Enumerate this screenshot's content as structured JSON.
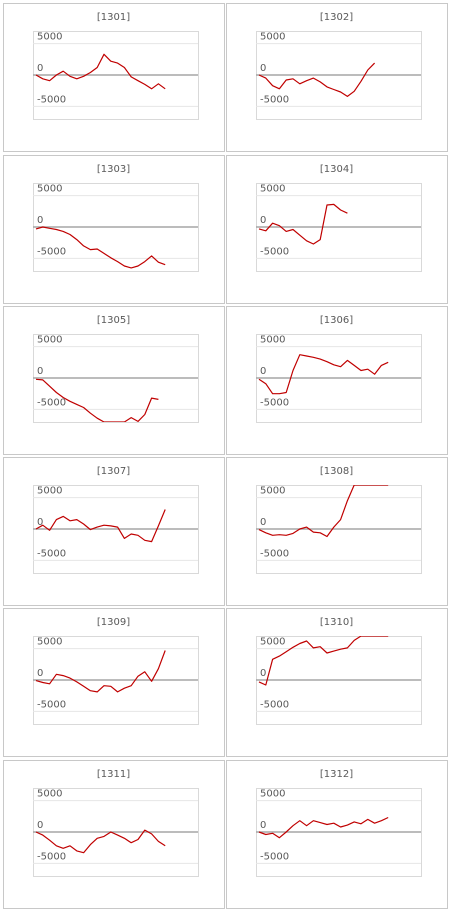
{
  "chart_data": [
    {
      "type": "line",
      "title": "[1301]",
      "color": "#c00000",
      "grid": true,
      "ylim": [
        -7000,
        7000
      ],
      "yticks": [
        -5000,
        0,
        5000
      ],
      "values": [
        0,
        -600,
        -900,
        0,
        600,
        -200,
        -600,
        -200,
        400,
        1200,
        3300,
        2200,
        1900,
        1200,
        -300,
        -900,
        -1500,
        -2200,
        -1400,
        -2200
      ]
    },
    {
      "type": "line",
      "title": "[1302]",
      "color": "#c00000",
      "grid": true,
      "ylim": [
        -7000,
        7000
      ],
      "yticks": [
        -5000,
        0,
        5000
      ],
      "values": [
        0,
        -500,
        -1700,
        -2200,
        -800,
        -600,
        -1400,
        -900,
        -500,
        -1100,
        -1900,
        -2300,
        -2700,
        -3400,
        -2600,
        -1000,
        800,
        1900
      ]
    },
    {
      "type": "line",
      "title": "[1303]",
      "color": "#c00000",
      "grid": true,
      "ylim": [
        -7000,
        7000
      ],
      "yticks": [
        -5000,
        0,
        5000
      ],
      "values": [
        -300,
        0,
        -200,
        -400,
        -700,
        -1200,
        -2000,
        -3000,
        -3600,
        -3500,
        -4200,
        -4900,
        -5500,
        -6200,
        -6500,
        -6200,
        -5500,
        -4600,
        -5600,
        -6000
      ]
    },
    {
      "type": "line",
      "title": "[1304]",
      "color": "#c00000",
      "grid": true,
      "ylim": [
        -7000,
        7000
      ],
      "yticks": [
        -5000,
        0,
        5000
      ],
      "values": [
        -300,
        -600,
        600,
        200,
        -700,
        -400,
        -1300,
        -2200,
        -2700,
        -2000,
        3500,
        3600,
        2700,
        2200
      ]
    },
    {
      "type": "line",
      "title": "[1305]",
      "color": "#c00000",
      "grid": true,
      "ylim": [
        -7000,
        7000
      ],
      "yticks": [
        -5000,
        0,
        5000
      ],
      "values": [
        -200,
        -300,
        -1300,
        -2300,
        -3100,
        -3700,
        -4200,
        -4700,
        -5600,
        -6400,
        -7000,
        -7000,
        -7000,
        -7000,
        -6300,
        -6900,
        -5800,
        -3200,
        -3400
      ]
    },
    {
      "type": "line",
      "title": "[1306]",
      "color": "#c00000",
      "grid": true,
      "ylim": [
        -7000,
        7000
      ],
      "yticks": [
        -5000,
        0,
        5000
      ],
      "values": [
        -200,
        -900,
        -2500,
        -2500,
        -2300,
        1200,
        3700,
        3500,
        3300,
        3000,
        2600,
        2100,
        1800,
        2800,
        2000,
        1200,
        1400,
        600,
        2000,
        2500
      ]
    },
    {
      "type": "line",
      "title": "[1307]",
      "color": "#c00000",
      "grid": true,
      "ylim": [
        -7000,
        7000
      ],
      "yticks": [
        -5000,
        0,
        5000
      ],
      "values": [
        0,
        600,
        -200,
        1500,
        2000,
        1300,
        1500,
        800,
        -100,
        300,
        600,
        500,
        300,
        -1500,
        -800,
        -1000,
        -1800,
        -2000,
        500,
        3100
      ]
    },
    {
      "type": "line",
      "title": "[1308]",
      "color": "#c00000",
      "grid": true,
      "ylim": [
        -7000,
        7000
      ],
      "yticks": [
        -5000,
        0,
        5000
      ],
      "values": [
        -100,
        -600,
        -1000,
        -900,
        -1000,
        -700,
        0,
        300,
        -500,
        -600,
        -1200,
        300,
        1500,
        4500,
        7000,
        7000,
        7000,
        7000,
        7000,
        7000
      ]
    },
    {
      "type": "line",
      "title": "[1309]",
      "color": "#c00000",
      "grid": true,
      "ylim": [
        -7000,
        7000
      ],
      "yticks": [
        -5000,
        0,
        5000
      ],
      "values": [
        -100,
        -400,
        -600,
        900,
        700,
        300,
        -300,
        -1000,
        -1700,
        -1900,
        -900,
        -1000,
        -1900,
        -1300,
        -900,
        600,
        1300,
        -200,
        1800,
        4700
      ]
    },
    {
      "type": "line",
      "title": "[1310]",
      "color": "#c00000",
      "grid": true,
      "ylim": [
        -7000,
        7000
      ],
      "yticks": [
        -5000,
        0,
        5000
      ],
      "values": [
        -300,
        -800,
        3300,
        3800,
        4500,
        5200,
        5800,
        6200,
        5100,
        5300,
        4300,
        4600,
        4900,
        5100,
        6300,
        7000,
        7000,
        7000,
        7000,
        7000
      ]
    },
    {
      "type": "line",
      "title": "[1311]",
      "color": "#c00000",
      "grid": true,
      "ylim": [
        -7000,
        7000
      ],
      "yticks": [
        -5000,
        0,
        5000
      ],
      "values": [
        0,
        -500,
        -1300,
        -2200,
        -2600,
        -2200,
        -3000,
        -3300,
        -2000,
        -1000,
        -700,
        0,
        -500,
        -1000,
        -1700,
        -1200,
        300,
        -300,
        -1500,
        -2200
      ]
    },
    {
      "type": "line",
      "title": "[1312]",
      "color": "#c00000",
      "grid": true,
      "ylim": [
        -7000,
        7000
      ],
      "yticks": [
        -5000,
        0,
        5000
      ],
      "values": [
        0,
        -400,
        -200,
        -900,
        0,
        1000,
        1800,
        1000,
        1800,
        1500,
        1200,
        1400,
        800,
        1100,
        1600,
        1300,
        2000,
        1400,
        1800,
        2300
      ]
    }
  ]
}
